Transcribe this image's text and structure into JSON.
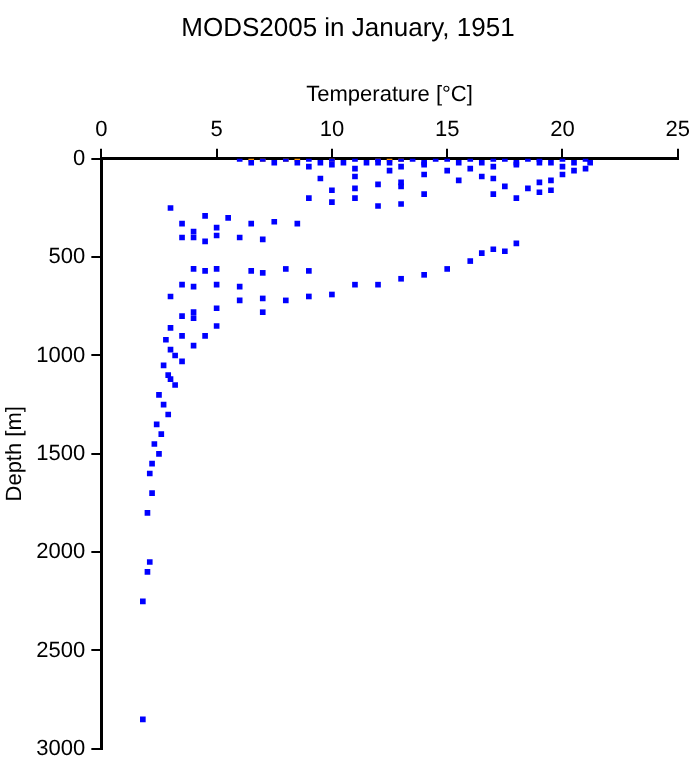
{
  "chart_data": {
    "type": "scatter",
    "title": "MODS2005 in January, 1951",
    "xlabel": "Temperature [°C]",
    "ylabel": "Depth [m]",
    "xlim": [
      0,
      25
    ],
    "xticks": [
      0,
      5,
      10,
      15,
      20,
      25
    ],
    "ylim": [
      3000,
      0
    ],
    "yticks": [
      0,
      500,
      1000,
      1500,
      2000,
      2500,
      3000
    ],
    "grid": false,
    "legend": false,
    "marker": "square",
    "series": [
      {
        "color": "#0000ff",
        "x": [
          6,
          6.5,
          7,
          7.5,
          8,
          8.5,
          9,
          9.5,
          10,
          10.5,
          11,
          11.5,
          12,
          12.5,
          13,
          13.5,
          14,
          14.5,
          15,
          15.5,
          16,
          16.5,
          17,
          17.5,
          18,
          18.5,
          19,
          19.5,
          20,
          20.5,
          21,
          21.2,
          9,
          10,
          11,
          12,
          12.5,
          13,
          14,
          15,
          16,
          17,
          18,
          19,
          20,
          20.5,
          21,
          9.5,
          11,
          13,
          14,
          15.5,
          16.5,
          17,
          19.5,
          20,
          10,
          11,
          12,
          13,
          14,
          17.5,
          18.5,
          19,
          19.5,
          9,
          10,
          11,
          12,
          13,
          17,
          18,
          19,
          3,
          3.5,
          4.5,
          5.5,
          6.5,
          7.5,
          8.5,
          4,
          4.5,
          5,
          6,
          7,
          4,
          4.5,
          5,
          6.5,
          7,
          8,
          9,
          3.5,
          4,
          5,
          6,
          4,
          5,
          7,
          8,
          9,
          10,
          11,
          12,
          13,
          14,
          15,
          16,
          16.5,
          17,
          17.5,
          18,
          3.5,
          4,
          5,
          6,
          7,
          3,
          3.5,
          4,
          5,
          3,
          3.5,
          4,
          4.5,
          2.8,
          3,
          3.2,
          3.5,
          2.7,
          2.9,
          3,
          3.2,
          2.5,
          2.7,
          2.9,
          2.4,
          2.6,
          2.3,
          2.5,
          2.2,
          2.1,
          2.2,
          2,
          2.1,
          2,
          1.8,
          1.8
        ],
        "values": [
          0,
          20,
          0,
          20,
          0,
          20,
          0,
          20,
          0,
          20,
          0,
          20,
          0,
          20,
          0,
          0,
          20,
          0,
          0,
          20,
          0,
          20,
          0,
          0,
          20,
          0,
          0,
          20,
          0,
          20,
          0,
          20,
          40,
          30,
          50,
          20,
          60,
          40,
          30,
          60,
          50,
          40,
          30,
          20,
          40,
          60,
          50,
          100,
          90,
          120,
          80,
          110,
          90,
          100,
          110,
          80,
          160,
          150,
          130,
          140,
          180,
          140,
          150,
          120,
          160,
          200,
          220,
          200,
          240,
          230,
          180,
          200,
          170,
          250,
          330,
          290,
          300,
          330,
          320,
          330,
          400,
          420,
          390,
          400,
          410,
          560,
          570,
          560,
          570,
          580,
          560,
          570,
          640,
          650,
          640,
          650,
          780,
          760,
          780,
          720,
          700,
          690,
          640,
          640,
          610,
          590,
          560,
          520,
          480,
          460,
          470,
          430,
          400,
          370,
          350,
          720,
          710,
          700,
          800,
          810,
          850,
          860,
          900,
          950,
          900,
          920,
          970,
          1000,
          1030,
          1050,
          1100,
          1120,
          1150,
          1200,
          1250,
          1300,
          1350,
          1400,
          1450,
          1500,
          1550,
          1600,
          1700,
          1800,
          2050,
          2100,
          2250,
          2850
        ]
      },
      {
        "color": "#ff9900",
        "x": [
          6.5,
          7,
          8,
          8.5,
          10,
          12,
          12.5,
          13
        ],
        "values": [
          0,
          0,
          0,
          0,
          0,
          0,
          0,
          0
        ]
      }
    ]
  }
}
